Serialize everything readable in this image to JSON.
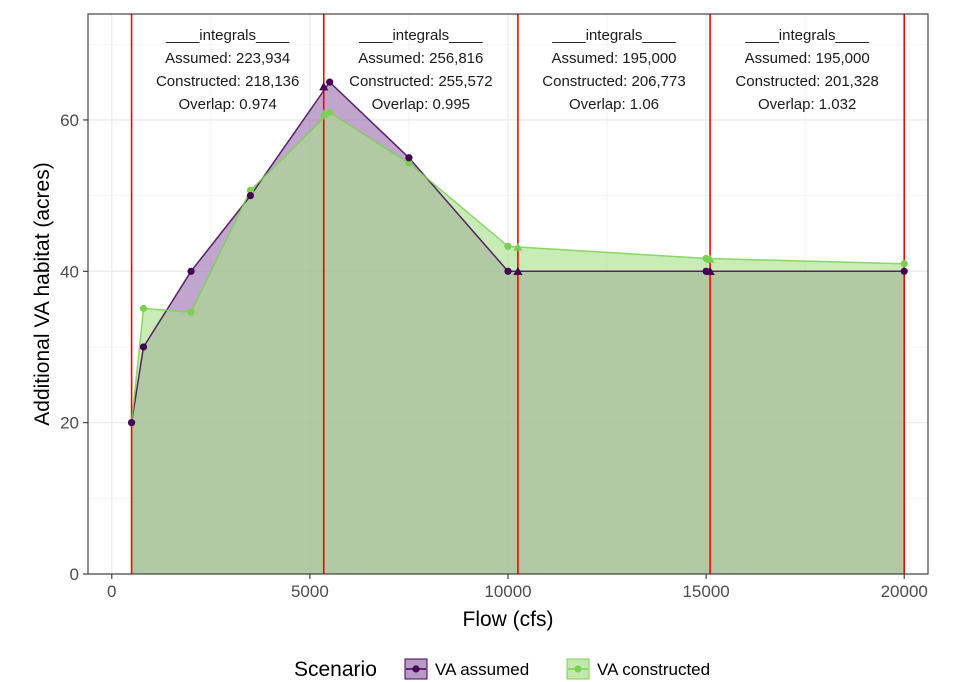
{
  "chart_data": {
    "type": "area",
    "xlabel": "Flow (cfs)",
    "ylabel": "Additional VA habitat (acres)",
    "xlim": [
      -600,
      20600
    ],
    "ylim": [
      0,
      74
    ],
    "x_ticks": [
      0,
      5000,
      10000,
      15000,
      20000
    ],
    "x_tick_labels": [
      "0",
      "5000",
      "10000",
      "15000",
      "20000"
    ],
    "y_ticks": [
      0,
      20,
      40,
      60
    ],
    "y_tick_labels": [
      "0",
      "20",
      "40",
      "60"
    ],
    "grid": true,
    "legend": {
      "title": "Scenario",
      "position": "bottom",
      "entries": [
        "VA assumed",
        "VA constructed"
      ]
    },
    "series": [
      {
        "name": "VA assumed",
        "color": "#440154",
        "fill": "#9a6fae",
        "x": [
          500,
          800,
          2000,
          3500,
          5500,
          7500,
          10000,
          15000,
          20000
        ],
        "y": [
          20,
          30,
          40,
          50,
          65,
          55,
          40,
          40,
          40
        ]
      },
      {
        "name": "VA constructed",
        "color": "#7ad151",
        "fill": "#a8e08a",
        "x": [
          500,
          800,
          2000,
          3500,
          5500,
          7500,
          10000,
          15000,
          20000
        ],
        "y": [
          20,
          35.1,
          34.6,
          50.7,
          61,
          54.3,
          43.3,
          41.7,
          41
        ]
      }
    ],
    "breakpoints": {
      "color": "#ff0000",
      "x": [
        500,
        5350,
        10250,
        15100,
        20000
      ]
    },
    "triangle_markers": {
      "x": [
        5350,
        10250,
        15100
      ],
      "assumed_y": [
        64.4,
        40,
        40
      ],
      "constructed_y": [
        60.8,
        43.2,
        41.6
      ]
    },
    "annotations": [
      {
        "heading": "____integrals____",
        "assumed": "Assumed: 223,934",
        "constructed": "Constructed: 218,136",
        "overlap": "Overlap: 0.974"
      },
      {
        "heading": "____integrals____",
        "assumed": "Assumed: 256,816",
        "constructed": "Constructed: 255,572",
        "overlap": "Overlap: 0.995"
      },
      {
        "heading": "____integrals____",
        "assumed": "Assumed: 195,000",
        "constructed": "Constructed: 206,773",
        "overlap": "Overlap: 1.06"
      },
      {
        "heading": "____integrals____",
        "assumed": "Assumed: 195,000",
        "constructed": "Constructed: 201,328",
        "overlap": "Overlap: 1.032"
      }
    ]
  }
}
